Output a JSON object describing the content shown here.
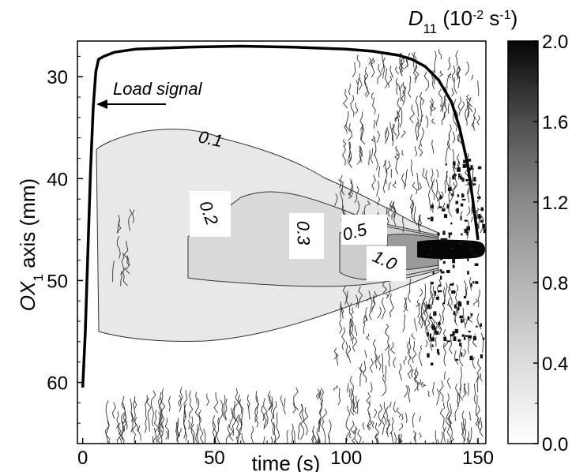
{
  "chart_data": {
    "type": "heatmap",
    "title": "",
    "xlabel": "time (s)",
    "ylabel": "OX1 axis (mm)",
    "xlim": [
      -2,
      153
    ],
    "ylim": [
      66,
      26.5
    ],
    "x_ticks": [
      "0",
      "50",
      "100",
      "150"
    ],
    "x_tick_values": [
      0,
      50,
      100,
      150
    ],
    "y_ticks": [
      "30",
      "40",
      "50",
      "60"
    ],
    "y_tick_values": [
      30,
      40,
      50,
      60
    ],
    "colorbar": {
      "label_main": "D",
      "label_sub": "11",
      "label_unit_open": " (10",
      "label_exp1": "-2",
      "label_unit_mid": " s",
      "label_exp2": "-1",
      "label_unit_close": ")",
      "ticks": [
        "0.0",
        "0.4",
        "0.8",
        "1.2",
        "1.6",
        "2.0"
      ],
      "tick_values": [
        0.0,
        0.4,
        0.8,
        1.2,
        1.6,
        2.0
      ],
      "range": [
        0.0,
        2.0
      ]
    },
    "contour_levels": [
      "0.1",
      "0.2",
      "0.3",
      "0.5",
      "1.0"
    ],
    "annotation": "Load signal",
    "load_signal": {
      "t": [
        0,
        1,
        2,
        3,
        4,
        5,
        6,
        8,
        12,
        20,
        40,
        60,
        80,
        100,
        110,
        120,
        125,
        130,
        135,
        140,
        143,
        146,
        148,
        150
      ],
      "y": [
        60.5,
        55,
        47,
        39,
        33,
        29.5,
        28.3,
        28,
        27.6,
        27.3,
        27.1,
        27.0,
        27.1,
        27.3,
        27.5,
        27.9,
        28.3,
        29,
        30.3,
        32.5,
        35,
        38.5,
        42,
        46
      ]
    },
    "colors": {
      "level_0.1": "#e8e8e8",
      "level_0.2": "#dadada",
      "level_0.3": "#cdcdcd",
      "level_0.5": "#9a9a9a",
      "level_1.0": "#050505"
    }
  }
}
